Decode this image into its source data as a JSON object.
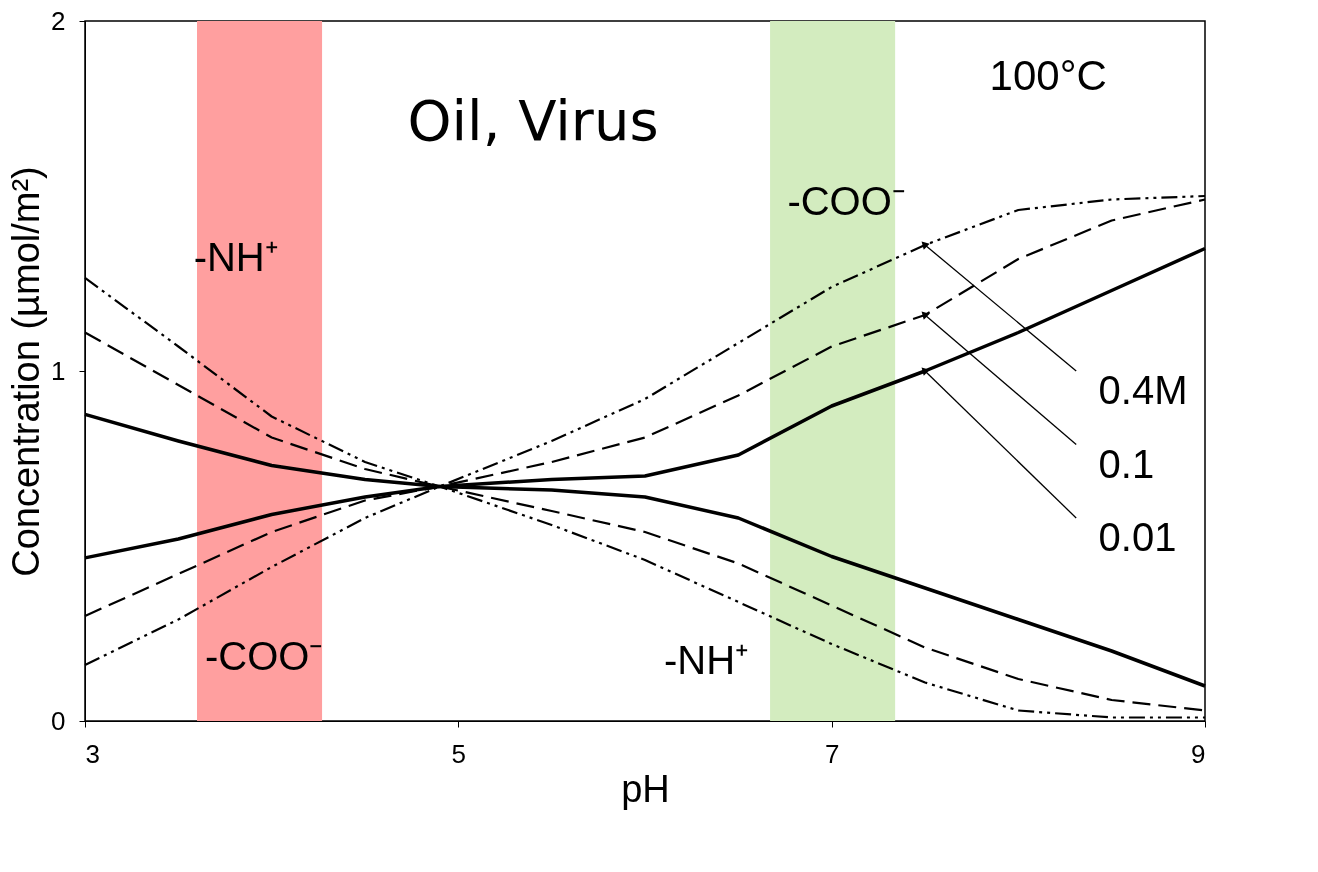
{
  "chart_data": {
    "type": "line",
    "xlabel": "pH",
    "ylabel": "Concentration (µmol/m²)",
    "x": [
      3,
      3.5,
      4,
      4.5,
      4.9,
      5.5,
      6,
      6.5,
      7,
      7.5,
      8,
      8.5,
      9
    ],
    "series": [
      {
        "color": "#000000",
        "line_style": "solid",
        "values": [
          0.876,
          0.8,
          0.73,
          0.69,
          0.67,
          0.66,
          0.64,
          0.58,
          0.47,
          0.38,
          0.29,
          0.2,
          0.1
        ]
      },
      {
        "color": "#000000",
        "line_style": "dashed",
        "values": [
          1.11,
          0.96,
          0.81,
          0.72,
          0.67,
          0.6,
          0.54,
          0.45,
          0.33,
          0.21,
          0.12,
          0.06,
          0.03
        ]
      },
      {
        "color": "#000000",
        "line_style": "dotted",
        "values": [
          1.266,
          1.07,
          0.87,
          0.74,
          0.67,
          0.56,
          0.46,
          0.34,
          0.22,
          0.11,
          0.03,
          0.01,
          0.01
        ]
      },
      {
        "name": "0.01",
        "color": "#000000",
        "line_style": "solid",
        "values": [
          0.466,
          0.52,
          0.59,
          0.64,
          0.67,
          0.69,
          0.7,
          0.76,
          0.9,
          1.0,
          1.11,
          1.23,
          1.35
        ]
      },
      {
        "name": "0.1",
        "color": "#000000",
        "line_style": "dashed",
        "values": [
          0.3,
          0.42,
          0.54,
          0.63,
          0.67,
          0.74,
          0.81,
          0.93,
          1.07,
          1.16,
          1.32,
          1.43,
          1.49
        ]
      },
      {
        "name": "0.4M",
        "color": "#000000",
        "line_style": "dotted",
        "values": [
          0.16,
          0.29,
          0.44,
          0.58,
          0.67,
          0.8,
          0.92,
          1.08,
          1.24,
          1.36,
          1.46,
          1.49,
          1.5
        ]
      }
    ],
    "xlim": [
      3,
      9
    ],
    "ylim": [
      0,
      2
    ],
    "xticks": [
      3,
      5,
      7,
      9
    ],
    "yticks": [
      0,
      1,
      2
    ],
    "grid": false,
    "marker": "none",
    "bands": [
      {
        "axis": "x",
        "from": 3.6,
        "to": 4.27,
        "color": "#ff9f9f"
      },
      {
        "axis": "x",
        "from": 6.67,
        "to": 7.34,
        "color": "#d3ecbf"
      }
    ],
    "annotations": [
      "Oil, Virus",
      "100°C",
      "-NH⁺",
      "-COO⁻",
      "-COO⁻",
      "-NH⁺"
    ]
  }
}
